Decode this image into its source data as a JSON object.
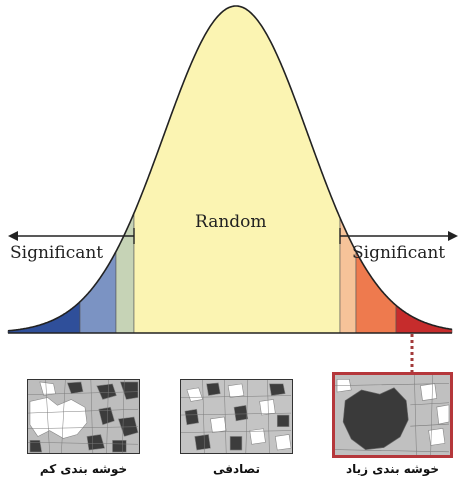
{
  "diagram": {
    "center_label": "Random",
    "left_label": "Significant",
    "right_label": "Significant",
    "colors": {
      "curve_fill": "#fbf4b2",
      "curve_stroke": "#222222",
      "left_dark_blue": "#2f4f9a",
      "left_blue": "#7b93c3",
      "left_light_green": "#c6d3b6",
      "right_light_orange": "#f6c399",
      "right_orange": "#ee7a4e",
      "right_red": "#c62c2c",
      "connector": "#a33a3a",
      "highlight_border": "#b5373b"
    }
  },
  "panels": [
    {
      "name": "low-clustering",
      "caption": "خوشه بندی کم"
    },
    {
      "name": "random",
      "caption": "تصادفی"
    },
    {
      "name": "high-clustering",
      "caption": "خوشه بندی زیاد"
    }
  ]
}
